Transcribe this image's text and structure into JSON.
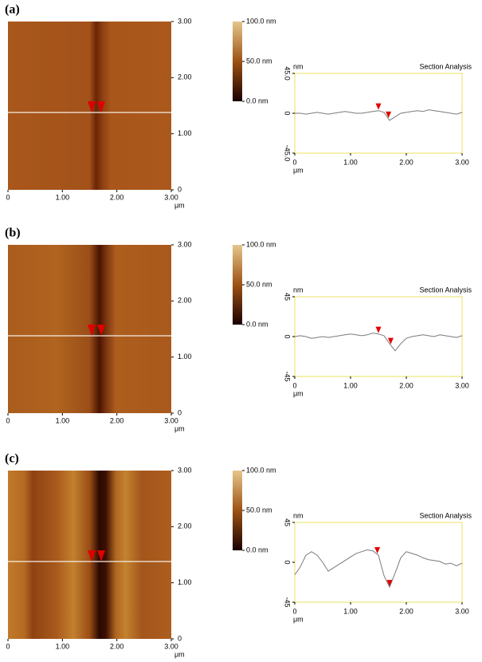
{
  "panels": [
    {
      "label": "(a)",
      "xlim": [
        0,
        3
      ],
      "ylim": [
        0,
        3
      ],
      "xticks": [
        0,
        {
          "value": 1,
          "label": "1.00"
        },
        {
          "value": 2,
          "label": "2.00"
        },
        {
          "value": 3,
          "label": "3.00"
        }
      ],
      "yticks": [
        0,
        {
          "value": 1,
          "label": "1.00"
        },
        {
          "value": 2,
          "label": "2.00"
        },
        {
          "value": 3,
          "label": "3.00"
        }
      ],
      "unit": "μm",
      "clim": [
        0,
        100
      ],
      "cticks": [
        {
          "value": 0,
          "label": "0.0 nm"
        },
        {
          "value": 50,
          "label": "50.0 nm"
        },
        {
          "value": 100,
          "label": "100.0 nm"
        }
      ]
    },
    {
      "label": "(b)",
      "xlim": [
        0,
        3
      ],
      "ylim": [
        0,
        3
      ],
      "xticks": [
        0,
        {
          "value": 1,
          "label": "1.00"
        },
        {
          "value": 2,
          "label": "2.00"
        },
        {
          "value": 3,
          "label": "3.00"
        }
      ],
      "yticks": [
        0,
        {
          "value": 1,
          "label": "1.00"
        },
        {
          "value": 2,
          "label": "2.00"
        },
        {
          "value": 3,
          "label": "3.00"
        }
      ],
      "unit": "μm",
      "clim": [
        0,
        100
      ],
      "cticks": [
        {
          "value": 0,
          "label": "0.0 nm"
        },
        {
          "value": 50,
          "label": "50.0 nm"
        },
        {
          "value": 100,
          "label": "100.0 nm"
        }
      ]
    },
    {
      "label": "(c)",
      "xlim": [
        0,
        3
      ],
      "ylim": [
        0,
        3
      ],
      "xticks": [
        0,
        {
          "value": 1,
          "label": "1.00"
        },
        {
          "value": 2,
          "label": "2.00"
        },
        {
          "value": 3,
          "label": "3.00"
        }
      ],
      "yticks": [
        0,
        {
          "value": 1,
          "label": "1.00"
        },
        {
          "value": 2,
          "label": "2.00"
        },
        {
          "value": 3,
          "label": "3.00"
        }
      ],
      "unit": "μm",
      "clim": [
        0,
        100
      ],
      "cticks": [
        {
          "value": 0,
          "label": "0.0 nm"
        },
        {
          "value": 50,
          "label": "50.0 nm"
        },
        {
          "value": 100,
          "label": "100.0 nm"
        }
      ]
    }
  ],
  "chart_data": [
    {
      "type": "line",
      "title": "Section Analysis",
      "y_label": "nm",
      "x_label": "μm",
      "color": "#7a7a7a",
      "marker_color": "#e00000",
      "markers": [
        1.5,
        1.68
      ],
      "x": [
        0,
        0.1,
        0.2,
        0.3,
        0.4,
        0.5,
        0.6,
        0.7,
        0.8,
        0.9,
        1,
        1.1,
        1.2,
        1.3,
        1.4,
        1.5,
        1.6,
        1.7,
        1.8,
        1.9,
        2,
        2.1,
        2.2,
        2.3,
        2.4,
        2.5,
        2.6,
        2.7,
        2.8,
        2.9,
        3
      ],
      "values": [
        0,
        0,
        -1,
        0,
        1,
        0,
        -1,
        0,
        1,
        2,
        1,
        0,
        0,
        1,
        2,
        3,
        1,
        -8,
        -4,
        0,
        1,
        2,
        3,
        2,
        4,
        3,
        2,
        1,
        0,
        -1,
        1
      ],
      "xlim": [
        0,
        3
      ],
      "xticks": [
        0,
        {
          "value": 1,
          "label": "1.00"
        },
        {
          "value": 2,
          "label": "2.00"
        },
        {
          "value": 3,
          "label": "3.00"
        }
      ],
      "ylim": [
        -45,
        45
      ],
      "yticks": [
        {
          "value": -45,
          "label": "-45.0"
        },
        0,
        {
          "value": 45,
          "label": "45.0"
        }
      ]
    },
    {
      "type": "line",
      "title": "Section Analysis",
      "y_label": "nm",
      "x_label": "μm",
      "color": "#7a7a7a",
      "marker_color": "#e00000",
      "markers": [
        1.5,
        1.72
      ],
      "x": [
        0,
        0.1,
        0.2,
        0.3,
        0.4,
        0.5,
        0.6,
        0.7,
        0.8,
        0.9,
        1,
        1.1,
        1.2,
        1.3,
        1.4,
        1.5,
        1.6,
        1.7,
        1.8,
        1.9,
        2,
        2.1,
        2.2,
        2.3,
        2.4,
        2.5,
        2.6,
        2.7,
        2.8,
        2.9,
        3
      ],
      "values": [
        0,
        1,
        0,
        -2,
        -1,
        0,
        -1,
        0,
        1,
        2,
        3,
        2,
        1,
        2,
        4,
        3,
        1,
        -8,
        -16,
        -8,
        -2,
        0,
        1,
        2,
        1,
        0,
        2,
        1,
        0,
        -1,
        1
      ],
      "xlim": [
        0,
        3
      ],
      "xticks": [
        0,
        {
          "value": 1,
          "label": "1.00"
        },
        {
          "value": 2,
          "label": "2.00"
        },
        {
          "value": 3,
          "label": "3.00"
        }
      ],
      "ylim": [
        -45,
        45
      ],
      "yticks": [
        -45,
        0,
        45
      ]
    },
    {
      "type": "line",
      "title": "Section Analysis",
      "y_label": "nm",
      "x_label": "μm",
      "color": "#7a7a7a",
      "marker_color": "#e00000",
      "markers": [
        1.48,
        1.7
      ],
      "x": [
        0,
        0.1,
        0.2,
        0.3,
        0.4,
        0.5,
        0.6,
        0.7,
        0.8,
        0.9,
        1,
        1.1,
        1.2,
        1.3,
        1.4,
        1.5,
        1.6,
        1.7,
        1.8,
        1.9,
        2,
        2.1,
        2.2,
        2.3,
        2.4,
        2.5,
        2.6,
        2.7,
        2.8,
        2.9,
        3
      ],
      "values": [
        -14,
        -5,
        8,
        12,
        8,
        0,
        -10,
        -6,
        -2,
        2,
        6,
        10,
        12,
        14,
        13,
        8,
        -15,
        -28,
        -12,
        5,
        12,
        10,
        8,
        5,
        3,
        2,
        1,
        -2,
        -1,
        -4,
        -1
      ],
      "xlim": [
        0,
        3
      ],
      "xticks": [
        0,
        {
          "value": 1,
          "label": "1.00"
        },
        {
          "value": 2,
          "label": "2.00"
        },
        {
          "value": 3,
          "label": "3.00"
        }
      ],
      "ylim": [
        -45,
        45
      ],
      "yticks": [
        -45,
        0,
        45
      ]
    }
  ]
}
